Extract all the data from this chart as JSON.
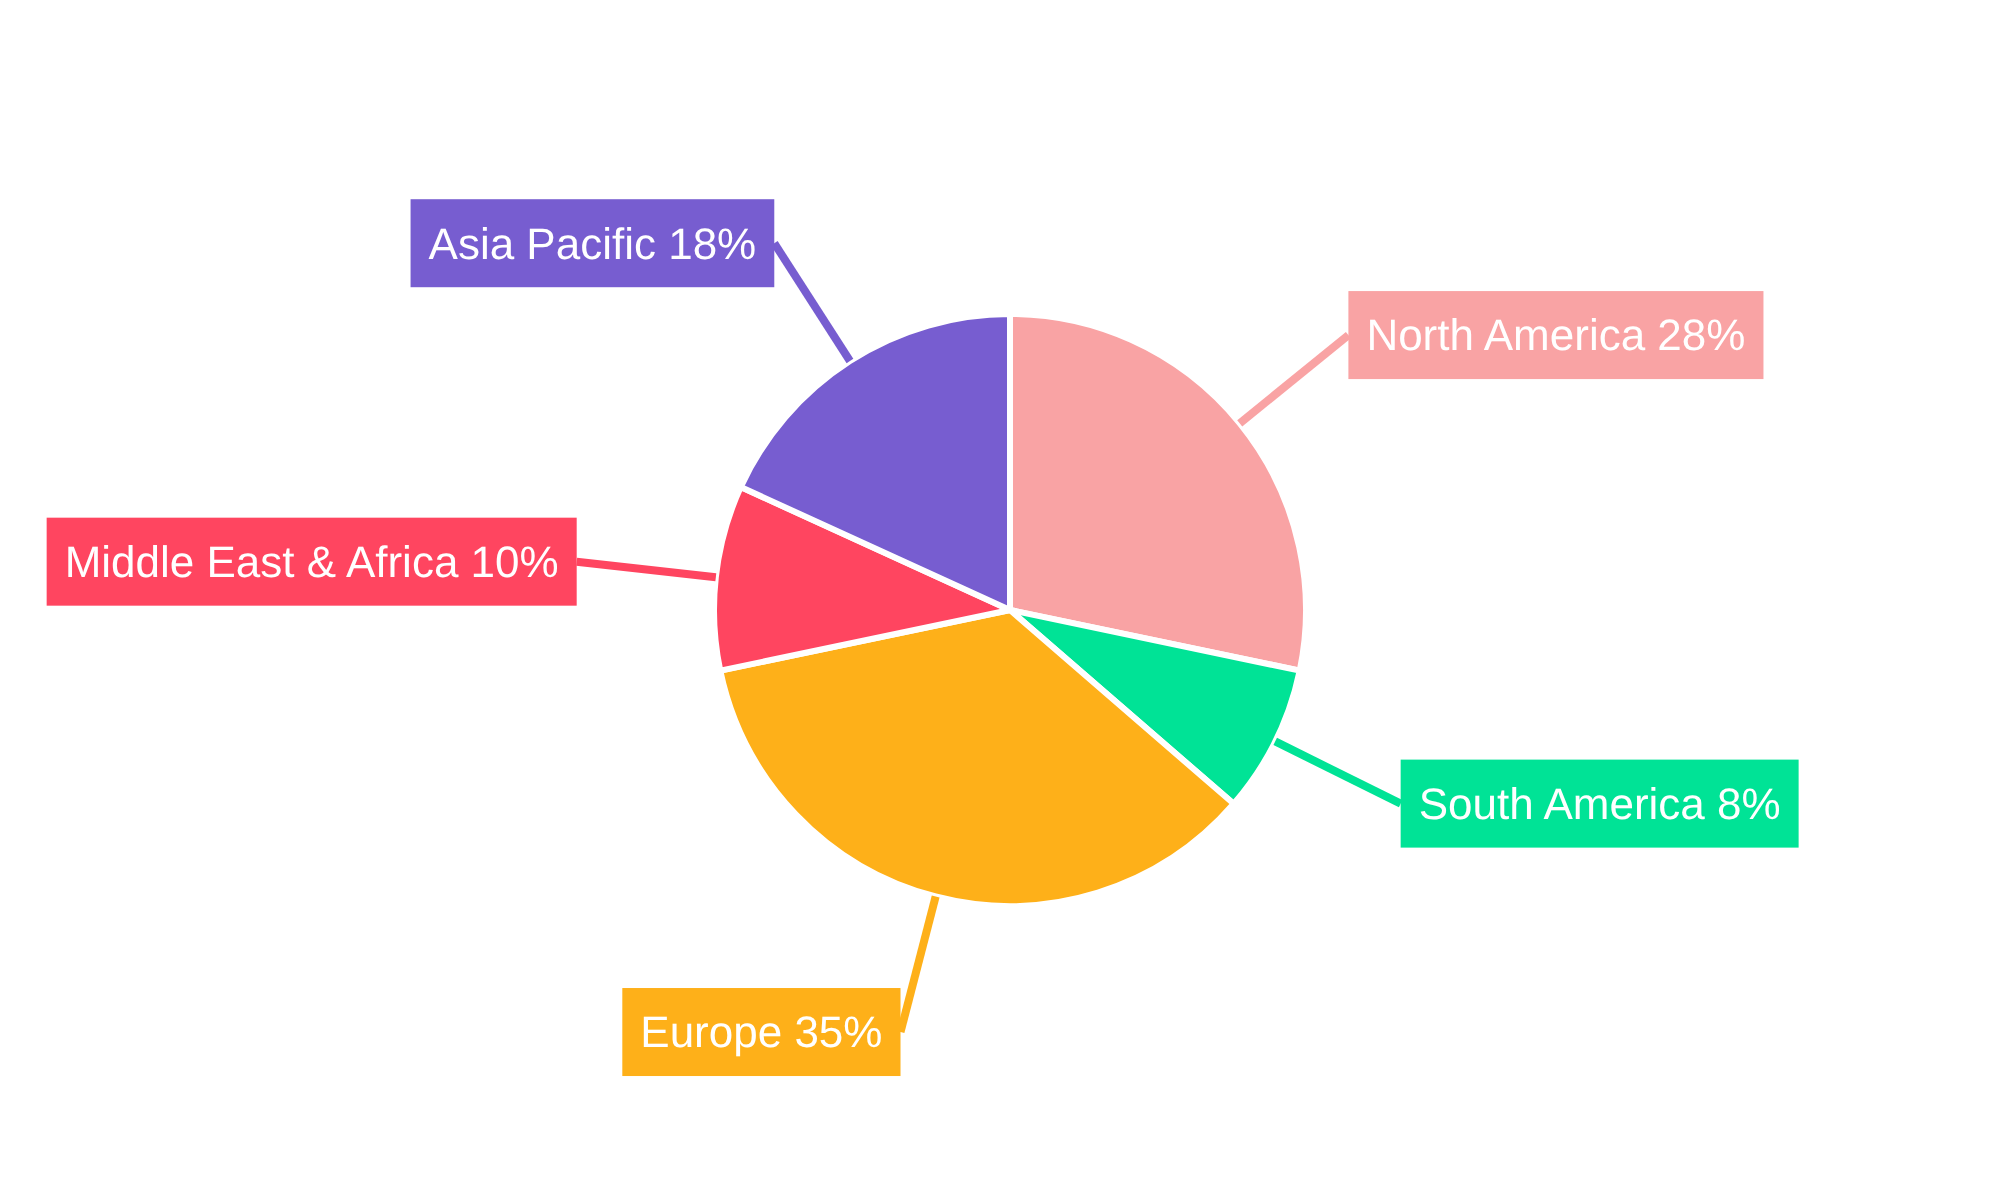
{
  "chart_data": {
    "type": "pie",
    "categories": [
      "North America",
      "South America",
      "Europe",
      "Middle East & Africa",
      "Asia Pacific"
    ],
    "values": [
      28,
      8,
      35,
      10,
      18
    ],
    "value_labels": [
      "28%",
      "8%",
      "35%",
      "10%",
      "18%"
    ],
    "colors": [
      "#f9a3a4",
      "#00e396",
      "#feb019",
      "#ff4560",
      "#775dd0"
    ],
    "legend": false
  }
}
